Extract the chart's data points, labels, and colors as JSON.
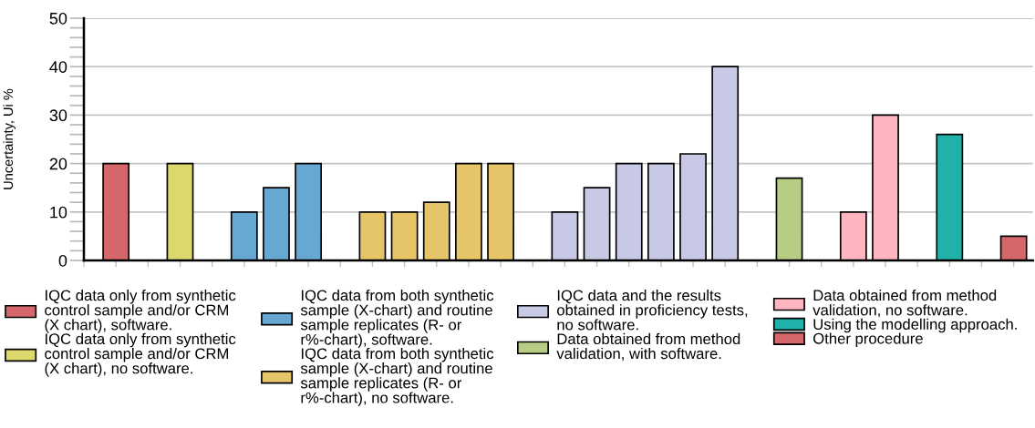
{
  "chart_data": {
    "type": "bar",
    "ylabel": "Uncertainty, Ui %",
    "categories": [
      null,
      null,
      null,
      null,
      null,
      null,
      null,
      null,
      null,
      null,
      null,
      null,
      null,
      null,
      null,
      null,
      null,
      null,
      null,
      null,
      null,
      null,
      null,
      null,
      null,
      null,
      null,
      null,
      null
    ],
    "series": [
      {
        "name": "IQC data only from synthetic control sample and/or CRM (X chart), software.",
        "color": "#d5676b",
        "values": [
          20,
          null,
          null,
          null,
          null,
          null,
          null,
          null,
          null,
          null,
          null,
          null,
          null,
          null,
          null,
          null,
          null,
          null,
          null,
          null,
          null,
          null,
          null,
          null,
          null,
          null,
          null,
          null,
          null
        ]
      },
      {
        "name": "IQC data only from synthetic control sample and/or CRM (X chart), no software.",
        "color": "#dcd86b",
        "values": [
          null,
          null,
          20,
          null,
          null,
          null,
          null,
          null,
          null,
          null,
          null,
          null,
          null,
          null,
          null,
          null,
          null,
          null,
          null,
          null,
          null,
          null,
          null,
          null,
          null,
          null,
          null,
          null,
          null
        ]
      },
      {
        "name": "IQC data from both synthetic sample (X-chart) and routine sample replicates (R- or r%-chart), software.",
        "color": "#67a8d2",
        "values": [
          null,
          null,
          null,
          null,
          10,
          15,
          20,
          null,
          null,
          null,
          null,
          null,
          null,
          null,
          null,
          null,
          null,
          null,
          null,
          null,
          null,
          null,
          null,
          null,
          null,
          null,
          null,
          null,
          null
        ]
      },
      {
        "name": "IQC data from both synthetic sample (X-chart) and routine sample replicates (R- or r%-chart), no software.",
        "color": "#e5c567",
        "values": [
          null,
          null,
          null,
          null,
          null,
          null,
          null,
          null,
          10,
          10,
          12,
          20,
          20,
          null,
          null,
          null,
          null,
          null,
          null,
          null,
          null,
          null,
          null,
          null,
          null,
          null,
          null,
          null,
          null
        ]
      },
      {
        "name": "IQC data and the results obtained in proficiency tests, no software.",
        "color": "#c8c9e4",
        "values": [
          null,
          null,
          null,
          null,
          null,
          null,
          null,
          null,
          null,
          null,
          null,
          null,
          null,
          null,
          10,
          15,
          20,
          20,
          22,
          40,
          null,
          null,
          null,
          null,
          null,
          null,
          null,
          null,
          null
        ]
      },
      {
        "name": "Data obtained from method validation, with software.",
        "color": "#b7cd84",
        "values": [
          null,
          null,
          null,
          null,
          null,
          null,
          null,
          null,
          null,
          null,
          null,
          null,
          null,
          null,
          null,
          null,
          null,
          null,
          null,
          null,
          null,
          17,
          null,
          null,
          null,
          null,
          null,
          null,
          null
        ]
      },
      {
        "name": "Data obtained from method validation, no software.",
        "color": "#ffb5c0",
        "values": [
          null,
          null,
          null,
          null,
          null,
          null,
          null,
          null,
          null,
          null,
          null,
          null,
          null,
          null,
          null,
          null,
          null,
          null,
          null,
          null,
          null,
          null,
          null,
          10,
          30,
          null,
          null,
          null,
          null
        ]
      },
      {
        "name": "Using the modelling approach.",
        "color": "#20b2aa",
        "values": [
          null,
          null,
          null,
          null,
          null,
          null,
          null,
          null,
          null,
          null,
          null,
          null,
          null,
          null,
          null,
          null,
          null,
          null,
          null,
          null,
          null,
          null,
          null,
          null,
          null,
          null,
          26,
          null,
          null
        ]
      },
      {
        "name": "Other procedure",
        "color": "#d5676b",
        "values": [
          null,
          null,
          null,
          null,
          null,
          null,
          null,
          null,
          null,
          null,
          null,
          null,
          null,
          null,
          null,
          null,
          null,
          null,
          null,
          null,
          null,
          null,
          null,
          null,
          null,
          null,
          null,
          null,
          5
        ]
      }
    ],
    "ylim": [
      0,
      50
    ],
    "yticks": [
      0,
      {
        "value": 2,
        "label": null
      },
      {
        "value": 4,
        "label": null
      },
      {
        "value": 6,
        "label": null
      },
      {
        "value": 8,
        "label": null
      },
      10,
      {
        "value": 12,
        "label": null
      },
      {
        "value": 14,
        "label": null
      },
      {
        "value": 16,
        "label": null
      },
      {
        "value": 18,
        "label": null
      },
      20,
      {
        "value": 22,
        "label": null
      },
      {
        "value": 24,
        "label": null
      },
      {
        "value": 26,
        "label": null
      },
      {
        "value": 28,
        "label": null
      },
      30,
      {
        "value": 32,
        "label": null
      },
      {
        "value": 34,
        "label": null
      },
      {
        "value": 36,
        "label": null
      },
      {
        "value": 38,
        "label": null
      },
      40,
      {
        "value": 42,
        "label": null
      },
      {
        "value": 44,
        "label": null
      },
      {
        "value": 46,
        "label": null
      },
      {
        "value": 48,
        "label": null
      },
      50
    ],
    "grid": "y",
    "legend": "bottom",
    "tick_labels": "y"
  }
}
